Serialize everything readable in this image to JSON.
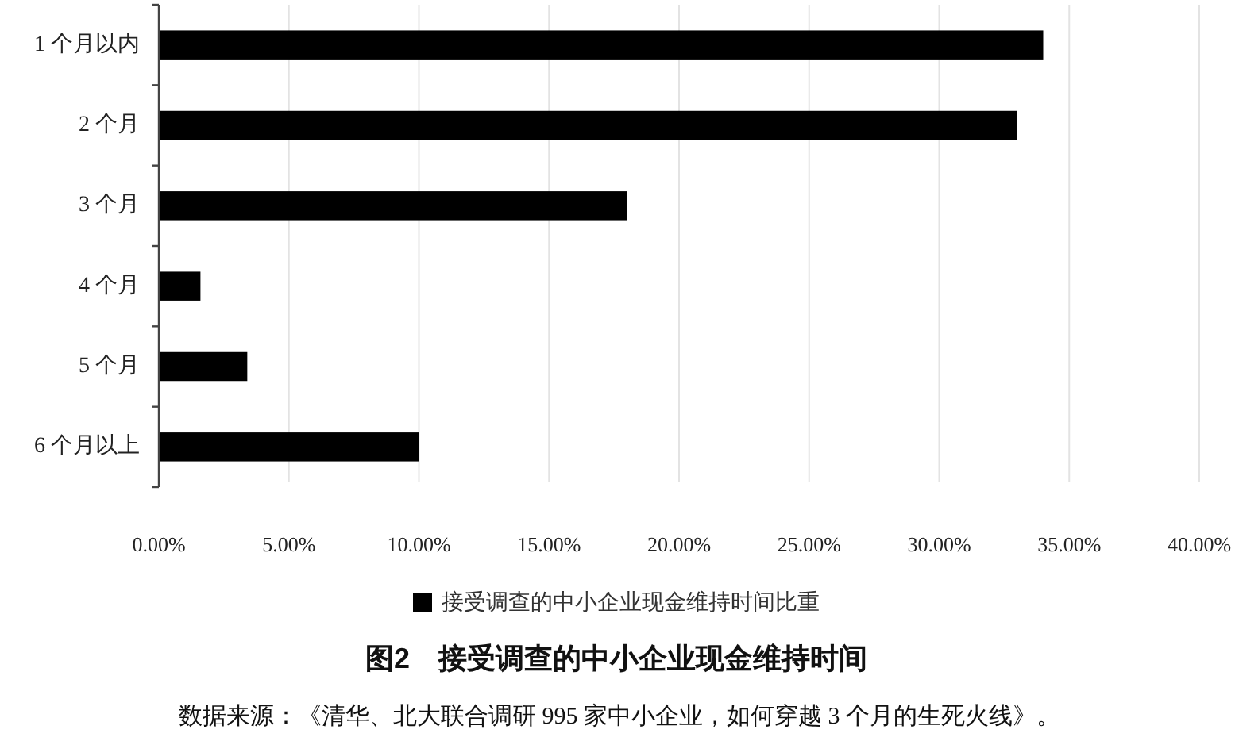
{
  "chart_data": {
    "type": "bar",
    "orientation": "horizontal",
    "title": "图2　接受调查的中小企业现金维持时间",
    "categories": [
      "1 个月以内",
      "2 个月",
      "3 个月",
      "4 个月",
      "5 个月",
      "6 个月以上"
    ],
    "series": [
      {
        "name": "接受调查的中小企业现金维持时间比重",
        "color": "#000000",
        "values": [
          34.0,
          33.0,
          18.0,
          1.6,
          3.4,
          10.0
        ]
      }
    ],
    "xlim": [
      0,
      40
    ],
    "xticks": [
      {
        "value": 0,
        "label": "0.00%"
      },
      {
        "value": 5,
        "label": "5.00%"
      },
      {
        "value": 10,
        "label": "10.00%"
      },
      {
        "value": 15,
        "label": "15.00%"
      },
      {
        "value": 20,
        "label": "20.00%"
      },
      {
        "value": 25,
        "label": "25.00%"
      },
      {
        "value": 30,
        "label": "30.00%"
      },
      {
        "value": 35,
        "label": "35.00%"
      },
      {
        "value": 40,
        "label": "40.00%"
      }
    ],
    "grid": "x",
    "legend": "bottom",
    "annotations": [
      "数据来源：《清华、北大联合调研 995 家中小企业，如何穿越 3 个月的生死火线》。"
    ]
  }
}
